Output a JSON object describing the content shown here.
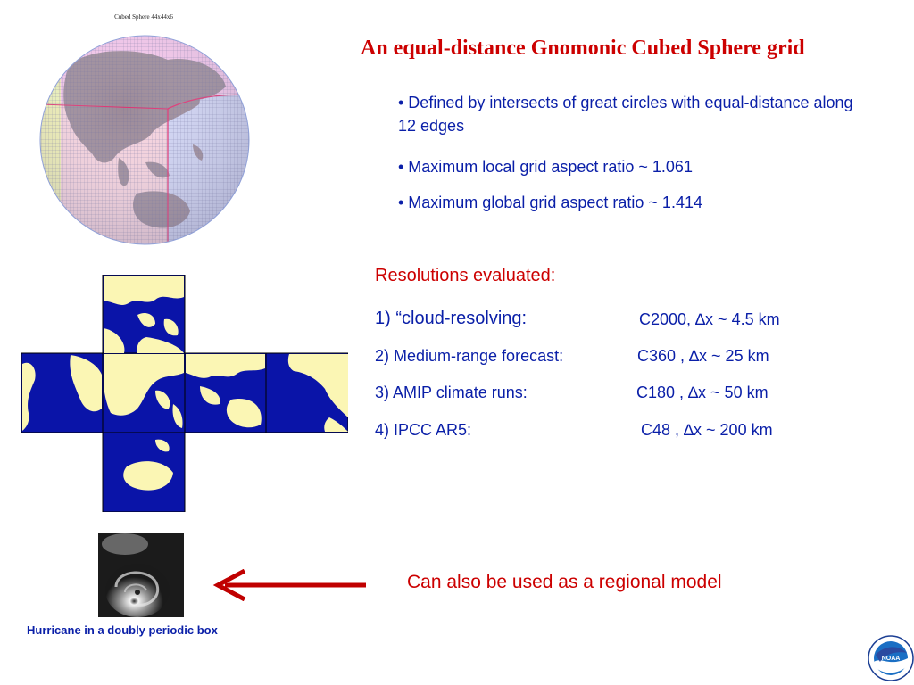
{
  "globe": {
    "title": "Cubed Sphere 44x44x6"
  },
  "slide": {
    "title": "An equal-distance Gnomonic Cubed Sphere grid",
    "bullets": [
      "• Defined by intersects of great circles with equal-distance along 12 edges",
      "• Maximum local grid aspect ratio ~ 1.061",
      "• Maximum global grid aspect ratio ~ 1.414"
    ]
  },
  "resolutions": {
    "heading": "Resolutions evaluated:",
    "rows": [
      {
        "name": "1) “cloud-resolving:",
        "value": "C2000, ∆x ~ 4.5 km"
      },
      {
        "name": "2)  Medium-range forecast:",
        "value": "C360  , ∆x ~ 25 km"
      },
      {
        "name": "3) AMIP climate runs:",
        "value": "C180  , ∆x ~ 50 km"
      },
      {
        "name": "4) IPCC AR5:",
        "value": "C48    , ∆x ~ 200 km"
      }
    ]
  },
  "hurricane": {
    "caption": "Hurricane in a doubly periodic box"
  },
  "regional": {
    "text": "Can also be used as a regional model"
  },
  "logo": {
    "text": "NOAA"
  },
  "colors": {
    "title": "#cc0000",
    "body": "#0a1fa8",
    "ocean": "#0a14a8",
    "land": "#fbf6b4",
    "arrow": "#c00000"
  }
}
